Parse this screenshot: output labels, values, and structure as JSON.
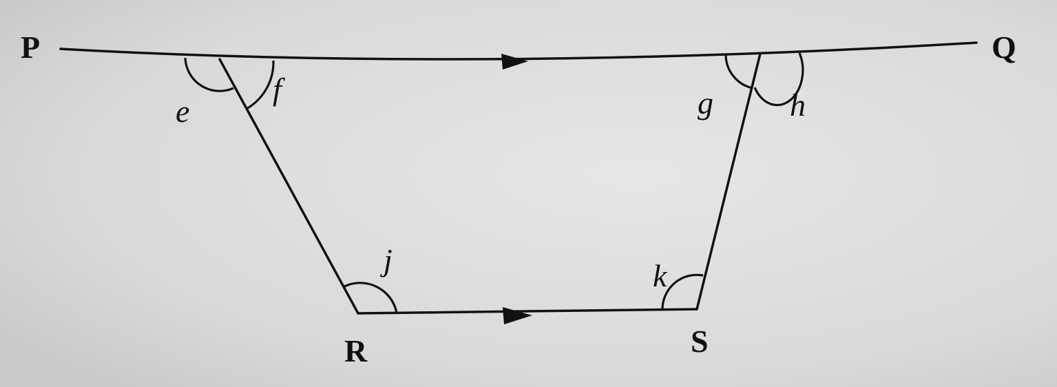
{
  "diagram": {
    "points": {
      "P": "P",
      "Q": "Q",
      "R": "R",
      "S": "S"
    },
    "angles": {
      "e": "e",
      "f": "f",
      "g": "g",
      "h": "h",
      "j": "j",
      "k": "k"
    },
    "parallel_marks": [
      "PQ",
      "RS"
    ],
    "colors": {
      "ink": "#111111",
      "paper": "#d8d8d6"
    }
  }
}
